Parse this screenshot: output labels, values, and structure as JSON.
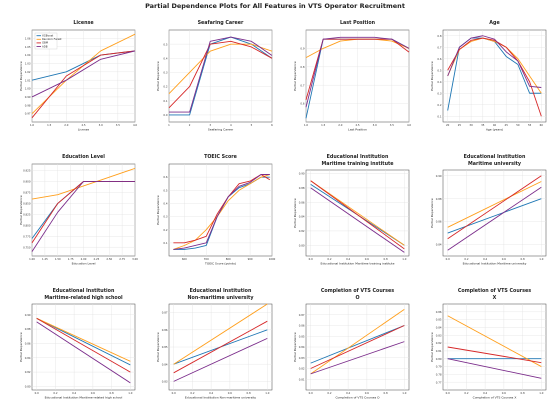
{
  "figure_title": "Partial Dependence Plots for All Features in VTS Operator Recruitment",
  "legend": {
    "entries": [
      "XGBoost",
      "Random Forest",
      "GBM",
      "ADB"
    ]
  },
  "colors": {
    "XGBoost": "#1f77b4",
    "Random Forest": "#ff9f1c",
    "GBM": "#d62728",
    "ADB": "#7b2d8b"
  },
  "chart_data": [
    {
      "type": "line",
      "title": "License",
      "xlabel": "License",
      "ylabel": "Partial Dependence",
      "x": [
        1,
        2,
        3,
        4
      ],
      "xticks": [
        "1.0",
        "1.5",
        "2.0",
        "2.5",
        "3.0",
        "3.5",
        "4.0"
      ],
      "xlim": [
        1,
        4
      ],
      "ylim": [
        0.96,
        1.07
      ],
      "yticks": [
        "0.97",
        "0.98",
        "0.99",
        "1.00",
        "1.01",
        "1.02",
        "1.03",
        "1.04",
        "1.05",
        "1.06"
      ],
      "series": [
        {
          "name": "XGBoost",
          "values": [
            1.01,
            1.02,
            1.04,
            1.045
          ]
        },
        {
          "name": "Random Forest",
          "values": [
            0.97,
            1.01,
            1.045,
            1.065
          ]
        },
        {
          "name": "GBM",
          "values": [
            0.965,
            1.015,
            1.04,
            1.045
          ]
        },
        {
          "name": "ADB",
          "values": [
            0.99,
            1.01,
            1.035,
            1.045
          ]
        }
      ]
    },
    {
      "type": "line",
      "title": "Seafaring Career",
      "xlabel": "Seafaring Career",
      "ylabel": "Partial Dependence",
      "x": [
        1,
        2,
        3,
        4,
        5,
        6
      ],
      "xticks": [
        "1",
        "2",
        "3",
        "4",
        "5",
        "6"
      ],
      "xlim": [
        1,
        6
      ],
      "ylim": [
        -0.05,
        0.6
      ],
      "yticks": [
        "0.0",
        "0.1",
        "0.2",
        "0.3",
        "0.4",
        "0.5"
      ],
      "series": [
        {
          "name": "XGBoost",
          "values": [
            0.0,
            0.0,
            0.5,
            0.55,
            0.5,
            0.4
          ]
        },
        {
          "name": "Random Forest",
          "values": [
            0.15,
            0.3,
            0.45,
            0.5,
            0.5,
            0.45
          ]
        },
        {
          "name": "GBM",
          "values": [
            0.05,
            0.2,
            0.5,
            0.52,
            0.48,
            0.4
          ]
        },
        {
          "name": "ADB",
          "values": [
            0.02,
            0.02,
            0.52,
            0.55,
            0.52,
            0.42
          ]
        }
      ]
    },
    {
      "type": "line",
      "title": "Last Position",
      "xlabel": "Last Position",
      "ylabel": "Partial Dependence",
      "x": [
        1.0,
        1.5,
        2.0,
        2.5,
        3.0,
        3.5,
        4.0
      ],
      "xticks": [
        "1.0",
        "1.5",
        "2.0",
        "2.5",
        "3.0",
        "3.5",
        "4.0"
      ],
      "xlim": [
        1,
        4
      ],
      "ylim": [
        0.5,
        1.0
      ],
      "yticks": [
        "0.6",
        "0.7",
        "0.8",
        "0.9"
      ],
      "series": [
        {
          "name": "XGBoost",
          "values": [
            0.52,
            0.95,
            0.95,
            0.95,
            0.95,
            0.95,
            0.9
          ]
        },
        {
          "name": "Random Forest",
          "values": [
            0.85,
            0.9,
            0.94,
            0.95,
            0.95,
            0.94,
            0.9
          ]
        },
        {
          "name": "GBM",
          "values": [
            0.62,
            0.95,
            0.95,
            0.95,
            0.95,
            0.95,
            0.88
          ]
        },
        {
          "name": "ADB",
          "values": [
            0.58,
            0.95,
            0.96,
            0.96,
            0.96,
            0.95,
            0.9
          ]
        }
      ]
    },
    {
      "type": "line",
      "title": "Age",
      "xlabel": "Age (years)",
      "ylabel": "Partial Dependence",
      "x": [
        20,
        25,
        30,
        35,
        40,
        45,
        50,
        55,
        60
      ],
      "xticks": [
        "20",
        "25",
        "30",
        "35",
        "40",
        "45",
        "50",
        "55",
        "60"
      ],
      "xlim": [
        18,
        62
      ],
      "ylim": [
        0.05,
        0.85
      ],
      "yticks": [
        "0.1",
        "0.2",
        "0.3",
        "0.4",
        "0.5",
        "0.6",
        "0.7",
        "0.8"
      ],
      "series": [
        {
          "name": "XGBoost",
          "values": [
            0.15,
            0.7,
            0.78,
            0.78,
            0.75,
            0.62,
            0.55,
            0.3,
            0.3
          ]
        },
        {
          "name": "Random Forest",
          "values": [
            0.45,
            0.68,
            0.75,
            0.78,
            0.75,
            0.7,
            0.6,
            0.45,
            0.3
          ]
        },
        {
          "name": "GBM",
          "values": [
            0.5,
            0.68,
            0.76,
            0.78,
            0.76,
            0.7,
            0.58,
            0.4,
            0.1
          ]
        },
        {
          "name": "ADB",
          "values": [
            0.45,
            0.7,
            0.78,
            0.8,
            0.77,
            0.66,
            0.58,
            0.36,
            0.35
          ]
        }
      ]
    },
    {
      "type": "line",
      "title": "Education Level",
      "xlabel": "Education Level",
      "ylabel": "Partial Dependence",
      "x": [
        1.0,
        1.5,
        2.0,
        2.5,
        3.0
      ],
      "xticks": [
        "1.00",
        "1.25",
        "1.50",
        "1.75",
        "2.00",
        "2.25",
        "2.50",
        "2.75",
        "3.00"
      ],
      "xlim": [
        1,
        3
      ],
      "ylim": [
        0.73,
        0.94
      ],
      "yticks": [
        "0.750",
        "0.775",
        "0.800",
        "0.825",
        "0.850",
        "0.875",
        "0.900",
        "0.925"
      ],
      "series": [
        {
          "name": "XGBoost",
          "values": [
            0.77,
            0.85,
            0.9,
            0.9,
            0.9
          ]
        },
        {
          "name": "Random Forest",
          "values": [
            0.86,
            0.87,
            0.89,
            0.91,
            0.93
          ]
        },
        {
          "name": "GBM",
          "values": [
            0.76,
            0.85,
            0.9,
            0.9,
            0.9
          ]
        },
        {
          "name": "ADB",
          "values": [
            0.74,
            0.83,
            0.9,
            0.9,
            0.9
          ]
        }
      ]
    },
    {
      "type": "line",
      "title": "TOEIC Score",
      "xlabel": "TOEIC Score (points)",
      "ylabel": "Partial Dependence",
      "x": [
        550,
        600,
        650,
        700,
        750,
        800,
        850,
        900,
        950,
        990
      ],
      "xticks": [
        "600",
        "700",
        "800",
        "900",
        "1000"
      ],
      "xlim": [
        530,
        1000
      ],
      "ylim": [
        0.0,
        0.7
      ],
      "yticks": [
        "0.1",
        "0.2",
        "0.3",
        "0.4",
        "0.5",
        "0.6"
      ],
      "series": [
        {
          "name": "XGBoost",
          "values": [
            0.05,
            0.05,
            0.06,
            0.08,
            0.3,
            0.45,
            0.52,
            0.55,
            0.6,
            0.6
          ]
        },
        {
          "name": "Random Forest",
          "values": [
            0.05,
            0.08,
            0.12,
            0.2,
            0.3,
            0.42,
            0.5,
            0.55,
            0.6,
            0.62
          ]
        },
        {
          "name": "GBM",
          "values": [
            0.1,
            0.1,
            0.12,
            0.15,
            0.32,
            0.45,
            0.55,
            0.57,
            0.62,
            0.58
          ]
        },
        {
          "name": "ADB",
          "values": [
            0.05,
            0.06,
            0.08,
            0.1,
            0.3,
            0.45,
            0.53,
            0.56,
            0.62,
            0.62
          ]
        }
      ]
    },
    {
      "type": "line",
      "title": "Educational Institution\nMaritime training institute",
      "xlabel": "Educational Institution Maritime training institute",
      "ylabel": "Partial Dependence",
      "x": [
        0,
        1
      ],
      "xticks": [
        "0.0",
        "0.2",
        "0.4",
        "0.6",
        "0.8",
        "1.0"
      ],
      "xlim": [
        -0.05,
        1.05
      ],
      "ylim": [
        0.785,
        0.905
      ],
      "yticks": [
        "0.80",
        "0.82",
        "0.84",
        "0.86",
        "0.88",
        "0.90"
      ],
      "series": [
        {
          "name": "XGBoost",
          "values": [
            0.885,
            0.8
          ]
        },
        {
          "name": "Random Forest",
          "values": [
            0.89,
            0.8
          ]
        },
        {
          "name": "GBM",
          "values": [
            0.89,
            0.795
          ]
        },
        {
          "name": "ADB",
          "values": [
            0.88,
            0.79
          ]
        }
      ]
    },
    {
      "type": "line",
      "title": "Educational Institution\nMaritime university",
      "xlabel": "Educational Institution Maritime university",
      "ylabel": "Partial Dependence",
      "x": [
        0,
        1
      ],
      "xticks": [
        "0.0",
        "0.2",
        "0.4",
        "0.6",
        "0.8",
        "1.0"
      ],
      "xlim": [
        -0.05,
        1.05
      ],
      "ylim": [
        0.83,
        0.905
      ],
      "yticks": [
        "0.84",
        "0.86",
        "0.88",
        "0.90"
      ],
      "series": [
        {
          "name": "XGBoost",
          "values": [
            0.85,
            0.88
          ]
        },
        {
          "name": "Random Forest",
          "values": [
            0.855,
            0.895
          ]
        },
        {
          "name": "GBM",
          "values": [
            0.845,
            0.9
          ]
        },
        {
          "name": "ADB",
          "values": [
            0.835,
            0.89
          ]
        }
      ]
    },
    {
      "type": "line",
      "title": "Educational Institution\nMaritime-related high school",
      "xlabel": "Educational Institution Maritime-related high school",
      "ylabel": "Partial Dependence",
      "x": [
        0,
        1
      ],
      "xticks": [
        "0.0",
        "0.2",
        "0.4",
        "0.6",
        "0.8",
        "1.0"
      ],
      "xlim": [
        -0.05,
        1.05
      ],
      "ylim": [
        0.795,
        0.915
      ],
      "yticks": [
        "0.80",
        "0.82",
        "0.84",
        "0.86",
        "0.88",
        "0.90"
      ],
      "series": [
        {
          "name": "XGBoost",
          "values": [
            0.895,
            0.83
          ]
        },
        {
          "name": "Random Forest",
          "values": [
            0.895,
            0.835
          ]
        },
        {
          "name": "GBM",
          "values": [
            0.895,
            0.82
          ]
        },
        {
          "name": "ADB",
          "values": [
            0.89,
            0.805
          ]
        }
      ]
    },
    {
      "type": "line",
      "title": "Educational Institution\nNon-maritime university",
      "xlabel": "Educational Institution Non-maritime university",
      "ylabel": "Partial Dependence",
      "x": [
        0,
        1
      ],
      "xticks": [
        "0.0",
        "0.2",
        "0.4",
        "0.6",
        "0.8",
        "1.0"
      ],
      "xlim": [
        -0.05,
        1.05
      ],
      "ylim": [
        0.825,
        0.875
      ],
      "yticks": [
        "0.83",
        "0.84",
        "0.85",
        "0.86",
        "0.87"
      ],
      "series": [
        {
          "name": "XGBoost",
          "values": [
            0.84,
            0.86
          ]
        },
        {
          "name": "Random Forest",
          "values": [
            0.84,
            0.875
          ]
        },
        {
          "name": "GBM",
          "values": [
            0.835,
            0.865
          ]
        },
        {
          "name": "ADB",
          "values": [
            0.83,
            0.855
          ]
        }
      ]
    },
    {
      "type": "line",
      "title": "Completion of VTS Courses\nO",
      "xlabel": "Completion of VTS Courses O",
      "ylabel": "Partial Dependence",
      "x": [
        0,
        1
      ],
      "xticks": [
        "0.0",
        "0.2",
        "0.4",
        "0.6",
        "0.8",
        "1.0"
      ],
      "xlim": [
        -0.05,
        1.05
      ],
      "ylim": [
        0.8,
        0.88
      ],
      "yticks": [
        "0.81",
        "0.82",
        "0.83",
        "0.84",
        "0.85",
        "0.86",
        "0.87"
      ],
      "series": [
        {
          "name": "XGBoost",
          "values": [
            0.825,
            0.86
          ]
        },
        {
          "name": "Random Forest",
          "values": [
            0.815,
            0.875
          ]
        },
        {
          "name": "GBM",
          "values": [
            0.82,
            0.86
          ]
        },
        {
          "name": "ADB",
          "values": [
            0.815,
            0.845
          ]
        }
      ]
    },
    {
      "type": "line",
      "title": "Completion of VTS Courses\nX",
      "xlabel": "Completion of VTS Courses X",
      "ylabel": "Partial Dependence",
      "x": [
        0,
        1
      ],
      "xticks": [
        "0.0",
        "0.2",
        "0.4",
        "0.6",
        "0.8",
        "1.0"
      ],
      "xlim": [
        -0.05,
        1.05
      ],
      "ylim": [
        0.76,
        0.87
      ],
      "yticks": [
        "0.77",
        "0.78",
        "0.79",
        "0.80",
        "0.81",
        "0.82",
        "0.83",
        "0.84",
        "0.85",
        "0.86"
      ],
      "series": [
        {
          "name": "XGBoost",
          "values": [
            0.8,
            0.8
          ]
        },
        {
          "name": "Random Forest",
          "values": [
            0.855,
            0.79
          ]
        },
        {
          "name": "GBM",
          "values": [
            0.815,
            0.795
          ]
        },
        {
          "name": "ADB",
          "values": [
            0.8,
            0.775
          ]
        }
      ]
    }
  ]
}
